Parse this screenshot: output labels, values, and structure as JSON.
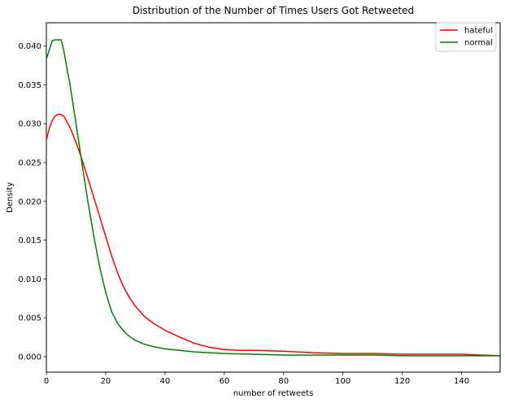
{
  "chart_data": {
    "type": "line",
    "title": "Distribution of the Number of Times Users Got Retweeted",
    "xlabel": "number of retweets",
    "ylabel": "Density",
    "xlim": [
      0,
      153
    ],
    "ylim": [
      -0.002,
      0.043
    ],
    "xticks": [
      0,
      20,
      40,
      60,
      80,
      100,
      120,
      140
    ],
    "xtick_labels": [
      "0",
      "20",
      "40",
      "60",
      "80",
      "100",
      "120",
      "140"
    ],
    "yticks": [
      0.0,
      0.005,
      0.01,
      0.015,
      0.02,
      0.025,
      0.03,
      0.035,
      0.04
    ],
    "ytick_labels": [
      "0.000",
      "0.005",
      "0.010",
      "0.015",
      "0.020",
      "0.025",
      "0.030",
      "0.035",
      "0.040"
    ],
    "grid": false,
    "legend_position": "top-right",
    "series": [
      {
        "name": "hateful",
        "color": "#ff0000",
        "x": [
          0,
          1,
          2,
          3,
          4,
          5,
          6,
          8,
          10,
          12,
          14,
          16,
          18,
          20,
          22,
          24,
          26,
          28,
          30,
          33,
          36,
          40,
          45,
          50,
          55,
          60,
          65,
          70,
          80,
          90,
          100,
          110,
          120,
          130,
          140,
          153
        ],
        "y": [
          0.0279,
          0.0294,
          0.0304,
          0.031,
          0.0312,
          0.0312,
          0.0309,
          0.0295,
          0.0276,
          0.0254,
          0.023,
          0.0205,
          0.018,
          0.0155,
          0.013,
          0.0108,
          0.009,
          0.0076,
          0.0065,
          0.0052,
          0.0043,
          0.0034,
          0.0025,
          0.0017,
          0.0012,
          0.0009,
          0.0008,
          0.0008,
          0.0007,
          0.0005,
          0.0004,
          0.0004,
          0.0003,
          0.0003,
          0.0003,
          0.0001
        ]
      },
      {
        "name": "normal",
        "color": "#008000",
        "x": [
          0,
          1,
          2,
          3,
          4,
          5,
          6,
          7,
          8,
          10,
          12,
          14,
          16,
          18,
          20,
          22,
          24,
          26,
          28,
          30,
          33,
          36,
          40,
          45,
          50,
          55,
          60,
          70,
          80,
          90,
          100,
          110,
          120,
          130,
          140,
          153
        ],
        "y": [
          0.0383,
          0.0395,
          0.0407,
          0.0408,
          0.0408,
          0.0408,
          0.0392,
          0.037,
          0.035,
          0.03,
          0.0249,
          0.02,
          0.0155,
          0.0115,
          0.0083,
          0.0058,
          0.0043,
          0.0033,
          0.0026,
          0.0021,
          0.0016,
          0.0013,
          0.001,
          0.0008,
          0.0006,
          0.0005,
          0.0004,
          0.0003,
          0.0002,
          0.0002,
          0.0002,
          0.0002,
          0.0001,
          0.0001,
          0.0001,
          0.0001
        ]
      }
    ]
  }
}
